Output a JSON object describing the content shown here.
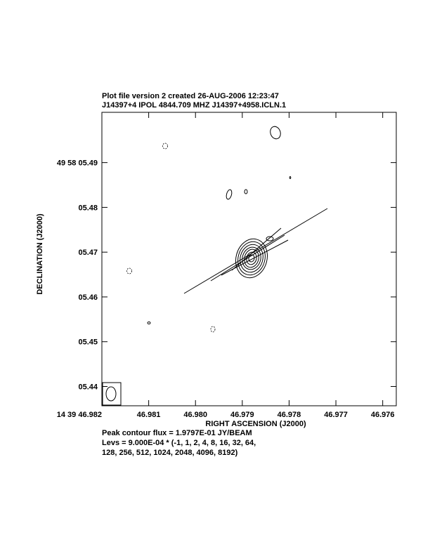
{
  "chart_data": {
    "type": "contour",
    "title": "Plot file version 2  created 26-AUG-2006 12:23:47",
    "subtitle": "J14397+4  IPOL  4844.709 MHZ  J14397+4958.ICLN.1",
    "x_label": "RIGHT ASCENSION (J2000)",
    "y_label": "DECLINATION (J2000)",
    "xlim": [
      46.982,
      46.97571
    ],
    "ylim": [
      5.43569,
      5.50123
    ],
    "xticks": [
      {
        "value": 46.982,
        "label": "14 39 46.982"
      },
      46.981,
      {
        "value": 46.98,
        "label": "46.980"
      },
      46.979,
      46.978,
      46.977,
      46.976
    ],
    "yticks": [
      {
        "value": 5.49,
        "label": "49 58 05.49"
      },
      {
        "value": 5.48,
        "label": "05.48"
      },
      {
        "value": 5.47,
        "label": "05.47"
      },
      {
        "value": 5.46,
        "label": "05.46"
      },
      {
        "value": 5.45,
        "label": "05.45"
      },
      {
        "value": 5.44,
        "label": "05.44"
      }
    ],
    "annotations": [
      "Peak contour flux =  1.9797E-01 JY/BEAM",
      "Levs = 9.000E-04 * (-1, 1, 2, 4, 8, 16, 32, 64,",
      "128, 256, 512, 1024, 2048, 4096, 8192)"
    ]
  }
}
